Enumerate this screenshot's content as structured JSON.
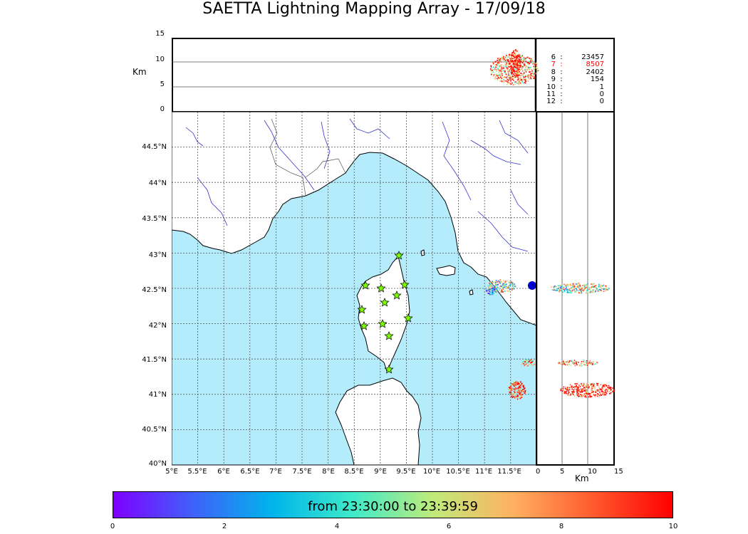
{
  "title": "SAETTA Lightning Mapping Array - 17/09/18",
  "colors": {
    "sea": "#b5ecfb",
    "land": "#ffffff",
    "river": "#3333cc",
    "border": "#555555",
    "coast": "#000000",
    "station_fill": "#7cfc00",
    "highlight": "#ff0000"
  },
  "top_panel": {
    "unit": "Km",
    "y_ticks": [
      "0",
      "5",
      "10",
      "15"
    ]
  },
  "map": {
    "lat_ticks": [
      "40°N",
      "40.5°N",
      "41°N",
      "41.5°N",
      "42°N",
      "42.5°N",
      "43°N",
      "43.5°N",
      "44°N",
      "44.5°N"
    ],
    "lon_ticks": [
      "5°E",
      "5.5°E",
      "6°E",
      "6.5°E",
      "7°E",
      "7.5°E",
      "8°E",
      "8.5°E",
      "9°E",
      "9.5°E",
      "10°E",
      "10.5°E",
      "11°E",
      "11.5°E"
    ],
    "stations_icon": "star-icon"
  },
  "right_panel": {
    "unit": "Km",
    "x_ticks": [
      "0",
      "5",
      "10",
      "15"
    ]
  },
  "stats": [
    {
      "key": "6",
      "sep": ":",
      "value": "23457"
    },
    {
      "key": "7",
      "sep": ":",
      "value": "8507",
      "highlight": true
    },
    {
      "key": "8",
      "sep": ":",
      "value": "2402"
    },
    {
      "key": "9",
      "sep": ":",
      "value": "154"
    },
    {
      "key": "10",
      "sep": ":",
      "value": "1"
    },
    {
      "key": "11",
      "sep": ":",
      "value": "0"
    },
    {
      "key": "12",
      "sep": ":",
      "value": "0"
    }
  ],
  "colorbar": {
    "label": "from 23:30:00 to 23:39:59",
    "ticks": [
      "0",
      "2",
      "4",
      "6",
      "8",
      "10"
    ],
    "stops": [
      "#7f00ff",
      "#3f61fa",
      "#00b5eb",
      "#3feac9",
      "#bfeb7a",
      "#ffb160",
      "#ff5a2f",
      "#ff0000"
    ]
  }
}
